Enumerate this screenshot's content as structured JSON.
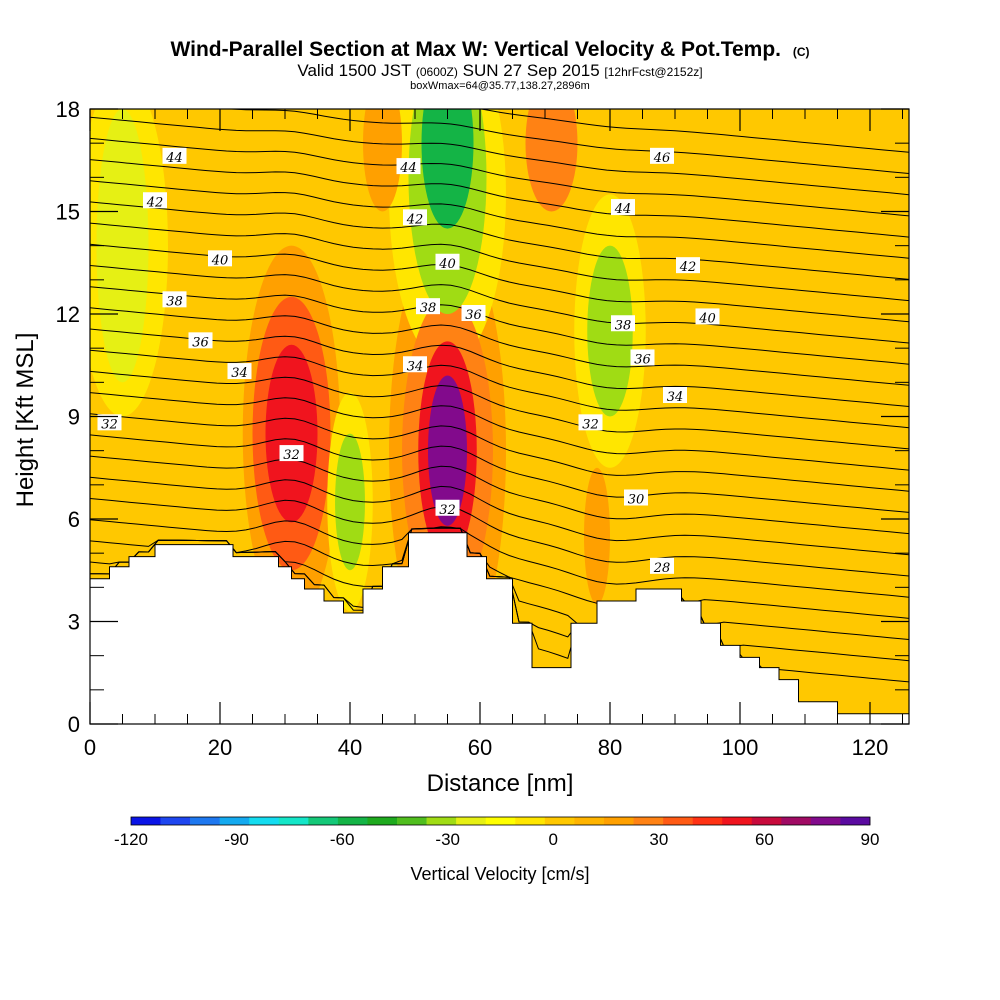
{
  "chart_data": {
    "type": "contour",
    "title": "Wind-Parallel Section at Max W: Vertical Velocity & Pot.Temp.",
    "title_suffix": "(C)",
    "subtitle_main1": "Valid 1500 JST",
    "subtitle_small1": "(0600Z)",
    "subtitle_main2": "SUN 27 Sep 2015",
    "subtitle_small2": "[12hrFcst@2152z]",
    "subtitle2": "boxWmax=64@35.77,138.27,2896m",
    "xlabel": "Distance [nm]",
    "ylabel": "Height [Kft MSL]",
    "xlim": [
      0,
      126
    ],
    "ylim": [
      0,
      18
    ],
    "x_ticks": [
      "0",
      "20",
      "40",
      "60",
      "80",
      "100",
      "120"
    ],
    "y_ticks": [
      "0",
      "3",
      "6",
      "9",
      "12",
      "15",
      "18"
    ],
    "colorbar": {
      "label": "Vertical Velocity [cm/s]",
      "tick_labels": [
        "-120",
        "-90",
        "-60",
        "-30",
        "0",
        "30",
        "60",
        "90"
      ],
      "colors": [
        "#0a14e6",
        "#1e46f0",
        "#1e78f0",
        "#14aaf0",
        "#14dcf0",
        "#14e6c8",
        "#14c878",
        "#14b446",
        "#1eaa1e",
        "#50be1e",
        "#a0dc14",
        "#e6f014",
        "#ffff00",
        "#ffe600",
        "#ffc800",
        "#ffb400",
        "#ffa000",
        "#ff8214",
        "#ff5a14",
        "#ff3214",
        "#f0141e",
        "#c80a3c",
        "#a00a64",
        "#820a8c",
        "#5a0aa0"
      ]
    },
    "terrain_profile": {
      "x": [
        0,
        3,
        3,
        6,
        6,
        10,
        10,
        22,
        22,
        29,
        29,
        31,
        31,
        33,
        33,
        36,
        36,
        39,
        39,
        42,
        42,
        45,
        45,
        49,
        49,
        58,
        58,
        61,
        61,
        65,
        65,
        68,
        68,
        74,
        74,
        78,
        78,
        84,
        84,
        91,
        91,
        94,
        94,
        97,
        97,
        100,
        100,
        103,
        103,
        106,
        106,
        109,
        109,
        115,
        115,
        126
      ],
      "y": [
        4.25,
        4.25,
        4.6,
        4.6,
        4.9,
        4.9,
        5.25,
        5.25,
        4.9,
        4.9,
        4.6,
        4.6,
        4.25,
        4.25,
        3.95,
        3.95,
        3.6,
        3.6,
        3.25,
        3.25,
        3.95,
        3.95,
        4.6,
        4.6,
        5.6,
        5.6,
        4.9,
        4.9,
        4.25,
        4.25,
        2.95,
        2.95,
        1.65,
        1.65,
        2.95,
        2.95,
        3.6,
        3.6,
        3.95,
        3.95,
        3.6,
        3.6,
        2.95,
        2.95,
        2.3,
        2.3,
        1.95,
        1.95,
        1.65,
        1.65,
        1.3,
        1.3,
        0.65,
        0.65,
        0.3,
        0.3
      ]
    },
    "w_field": {
      "background": 5,
      "features": [
        {
          "x": 31,
          "y": 8.5,
          "rx": 4,
          "ry": 2.6,
          "w": 55
        },
        {
          "x": 31,
          "y": 8.5,
          "rx": 6,
          "ry": 4,
          "w": 35
        },
        {
          "x": 31,
          "y": 8.5,
          "rx": 7.5,
          "ry": 5.5,
          "w": 18
        },
        {
          "x": 55,
          "y": 8.0,
          "rx": 3,
          "ry": 2.2,
          "w": 75
        },
        {
          "x": 55,
          "y": 8.0,
          "rx": 4.5,
          "ry": 3.2,
          "w": 55
        },
        {
          "x": 55,
          "y": 8.0,
          "rx": 7,
          "ry": 4.5,
          "w": 30
        },
        {
          "x": 55,
          "y": 8.0,
          "rx": 9,
          "ry": 6.5,
          "w": 15
        },
        {
          "x": 40,
          "y": 6.5,
          "rx": 2.3,
          "ry": 2.0,
          "w": -30
        },
        {
          "x": 40,
          "y": 6.5,
          "rx": 3.5,
          "ry": 3.2,
          "w": -10
        },
        {
          "x": 55,
          "y": 17,
          "rx": 4,
          "ry": 2.5,
          "w": -55
        },
        {
          "x": 55,
          "y": 16,
          "rx": 6,
          "ry": 4,
          "w": -30
        },
        {
          "x": 55,
          "y": 15.5,
          "rx": 9,
          "ry": 5,
          "w": -10
        },
        {
          "x": 80,
          "y": 11.5,
          "rx": 3.5,
          "ry": 2.5,
          "w": -35
        },
        {
          "x": 80,
          "y": 11.5,
          "rx": 5.5,
          "ry": 4,
          "w": -10
        },
        {
          "x": 5,
          "y": 14,
          "rx": 4,
          "ry": 4,
          "w": -25
        },
        {
          "x": 5,
          "y": 14,
          "rx": 7,
          "ry": 5,
          "w": -10
        },
        {
          "x": 71,
          "y": 17,
          "rx": 4,
          "ry": 2,
          "w": 28
        },
        {
          "x": 45,
          "y": 17,
          "rx": 3,
          "ry": 2,
          "w": 20
        },
        {
          "x": 78,
          "y": 5.5,
          "rx": 2,
          "ry": 2,
          "w": 22
        }
      ]
    },
    "theta_labels": [
      {
        "x": 13,
        "y": 16.6,
        "text": "44"
      },
      {
        "x": 10,
        "y": 15.3,
        "text": "42"
      },
      {
        "x": 20,
        "y": 13.6,
        "text": "40"
      },
      {
        "x": 13,
        "y": 12.4,
        "text": "38"
      },
      {
        "x": 17,
        "y": 11.2,
        "text": "36"
      },
      {
        "x": 23,
        "y": 10.3,
        "text": "34"
      },
      {
        "x": 3,
        "y": 8.8,
        "text": "32"
      },
      {
        "x": 31,
        "y": 7.9,
        "text": "32"
      },
      {
        "x": 49,
        "y": 16.3,
        "text": "44"
      },
      {
        "x": 50,
        "y": 14.8,
        "text": "42"
      },
      {
        "x": 55,
        "y": 13.5,
        "text": "40"
      },
      {
        "x": 52,
        "y": 12.2,
        "text": "38"
      },
      {
        "x": 59,
        "y": 12.0,
        "text": "36"
      },
      {
        "x": 50,
        "y": 10.5,
        "text": "34"
      },
      {
        "x": 55,
        "y": 6.3,
        "text": "32"
      },
      {
        "x": 77,
        "y": 8.8,
        "text": "32"
      },
      {
        "x": 88,
        "y": 16.6,
        "text": "46"
      },
      {
        "x": 82,
        "y": 15.1,
        "text": "44"
      },
      {
        "x": 92,
        "y": 13.4,
        "text": "42"
      },
      {
        "x": 95,
        "y": 11.9,
        "text": "40"
      },
      {
        "x": 82,
        "y": 11.7,
        "text": "38"
      },
      {
        "x": 85,
        "y": 10.7,
        "text": "36"
      },
      {
        "x": 90,
        "y": 9.6,
        "text": "34"
      },
      {
        "x": 84,
        "y": 6.6,
        "text": "30"
      },
      {
        "x": 88,
        "y": 4.6,
        "text": "28"
      }
    ]
  }
}
